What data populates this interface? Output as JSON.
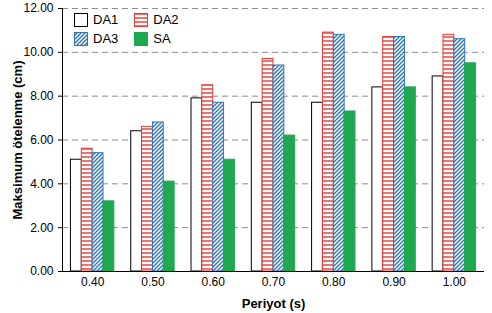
{
  "chart_data": {
    "type": "bar",
    "x_label": "Periyot (s)",
    "y_label": "Maksimum ötelenme (cm)",
    "categories": [
      "0.40",
      "0.50",
      "0.60",
      "0.70",
      "0.80",
      "0.90",
      "1.00"
    ],
    "series": [
      {
        "name": "DA1",
        "color": "#ffffff",
        "values": [
          5.1,
          6.4,
          7.9,
          7.7,
          7.7,
          8.4,
          8.9
        ]
      },
      {
        "name": "DA2",
        "color": "#e53935",
        "values": [
          5.6,
          6.6,
          8.5,
          9.7,
          10.9,
          10.7,
          10.8
        ]
      },
      {
        "name": "DA3",
        "color": "#2e75b6",
        "values": [
          5.4,
          6.8,
          7.7,
          9.4,
          10.8,
          10.7,
          10.6
        ]
      },
      {
        "name": "SA",
        "color": "#1fa84f",
        "values": [
          3.2,
          4.1,
          5.1,
          6.2,
          7.3,
          8.4,
          9.5
        ]
      }
    ],
    "ylim": [
      0,
      12
    ],
    "yticks": [
      {
        "value": 0,
        "label": "0.00"
      },
      {
        "value": 2,
        "label": "2.00"
      },
      {
        "value": 4,
        "label": "4.00"
      },
      {
        "value": 6,
        "label": "6.00"
      },
      {
        "value": 8,
        "label": "8.00"
      },
      {
        "value": 10,
        "label": "10.00"
      },
      {
        "value": 12,
        "label": "12.00"
      }
    ],
    "grid": true,
    "legend": "top-left"
  }
}
